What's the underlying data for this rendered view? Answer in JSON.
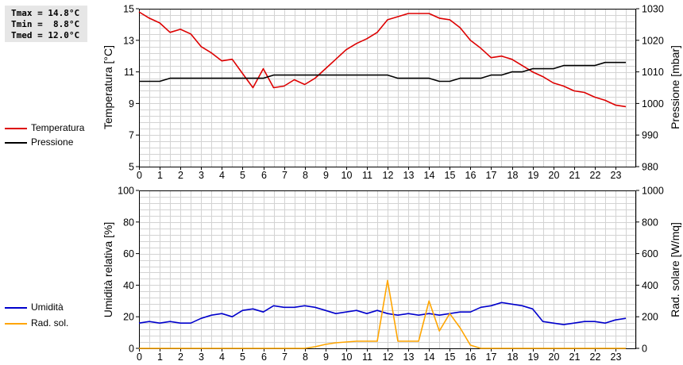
{
  "stats": {
    "tmax": "Tmax = 14.8°C",
    "tmin": "Tmin =  8.8°C",
    "tmed": "Tmed = 12.0°C"
  },
  "chart_data": [
    {
      "type": "line",
      "ylabel": "Temperatura [°C]",
      "y2label": "Pressione [mbar]",
      "ylim": [
        5,
        15
      ],
      "y2lim": [
        980,
        1030
      ],
      "y_ticks": [
        "5",
        "7",
        "9",
        "11",
        "13",
        "15"
      ],
      "y2_ticks": [
        "980",
        "990",
        "1000",
        "1010",
        "1020",
        "1030"
      ],
      "xlim": [
        0,
        24
      ],
      "x_ticks": [
        "0",
        "1",
        "2",
        "3",
        "4",
        "5",
        "6",
        "7",
        "8",
        "9",
        "10",
        "11",
        "12",
        "13",
        "14",
        "15",
        "16",
        "17",
        "18",
        "19",
        "20",
        "21",
        "22",
        "23"
      ],
      "grid": true,
      "legend": "left",
      "series": [
        {
          "name": "Temperatura",
          "axis": "left",
          "color": "#dd0000",
          "x": [
            0,
            0.5,
            1,
            1.5,
            2,
            2.5,
            3,
            3.5,
            4,
            4.5,
            5,
            5.5,
            6,
            6.5,
            7,
            7.5,
            8,
            8.5,
            9,
            9.5,
            10,
            10.5,
            11,
            11.5,
            12,
            12.5,
            13,
            13.5,
            14,
            14.5,
            15,
            15.5,
            16,
            16.5,
            17,
            17.5,
            18,
            18.5,
            19,
            19.5,
            20,
            20.5,
            21,
            21.5,
            22,
            22.5,
            23,
            23.5
          ],
          "y": [
            14.8,
            14.4,
            14.1,
            13.5,
            13.7,
            13.4,
            12.6,
            12.2,
            11.7,
            11.8,
            10.9,
            10.0,
            11.2,
            10.0,
            10.1,
            10.5,
            10.2,
            10.6,
            11.2,
            11.8,
            12.4,
            12.8,
            13.1,
            13.5,
            14.3,
            14.5,
            14.7,
            14.7,
            14.7,
            14.4,
            14.3,
            13.8,
            13.0,
            12.5,
            11.9,
            12.0,
            11.8,
            11.4,
            11.0,
            10.7,
            10.3,
            10.1,
            9.8,
            9.7,
            9.4,
            9.2,
            8.9,
            8.8
          ]
        },
        {
          "name": "Pressione",
          "axis": "right",
          "color": "#000000",
          "x": [
            0,
            0.5,
            1,
            1.5,
            2,
            2.5,
            3,
            3.5,
            4,
            4.5,
            5,
            5.5,
            6,
            6.5,
            7,
            7.5,
            8,
            8.5,
            9,
            9.5,
            10,
            10.5,
            11,
            11.5,
            12,
            12.5,
            13,
            13.5,
            14,
            14.5,
            15,
            15.5,
            16,
            16.5,
            17,
            17.5,
            18,
            18.5,
            19,
            19.5,
            20,
            20.5,
            21,
            21.5,
            22,
            22.5,
            23,
            23.5
          ],
          "y": [
            1007,
            1007,
            1007,
            1008,
            1008,
            1008,
            1008,
            1008,
            1008,
            1008,
            1008,
            1008,
            1008,
            1009,
            1009,
            1009,
            1009,
            1009,
            1009,
            1009,
            1009,
            1009,
            1009,
            1009,
            1009,
            1008,
            1008,
            1008,
            1008,
            1007,
            1007,
            1008,
            1008,
            1008,
            1009,
            1009,
            1010,
            1010,
            1011,
            1011,
            1011,
            1012,
            1012,
            1012,
            1012,
            1013,
            1013,
            1013
          ]
        }
      ]
    },
    {
      "type": "line",
      "ylabel": "Umidità relativa [%]",
      "y2label": "Rad. solare [W/mq]",
      "ylim": [
        0,
        100
      ],
      "y2lim": [
        0,
        1000
      ],
      "y_ticks": [
        "0",
        "20",
        "40",
        "60",
        "80",
        "100"
      ],
      "y2_ticks": [
        "0",
        "200",
        "400",
        "600",
        "800",
        "1000"
      ],
      "xlim": [
        0,
        24
      ],
      "x_ticks": [
        "0",
        "1",
        "2",
        "3",
        "4",
        "5",
        "6",
        "7",
        "8",
        "9",
        "10",
        "11",
        "12",
        "13",
        "14",
        "15",
        "16",
        "17",
        "18",
        "19",
        "20",
        "21",
        "22",
        "23"
      ],
      "grid": true,
      "legend": "left",
      "series": [
        {
          "name": "Umidità",
          "axis": "left",
          "color": "#0000cc",
          "x": [
            0,
            0.5,
            1,
            1.5,
            2,
            2.5,
            3,
            3.5,
            4,
            4.5,
            5,
            5.5,
            6,
            6.5,
            7,
            7.5,
            8,
            8.5,
            9,
            9.5,
            10,
            10.5,
            11,
            11.5,
            12,
            12.5,
            13,
            13.5,
            14,
            14.5,
            15,
            15.5,
            16,
            16.5,
            17,
            17.5,
            18,
            18.5,
            19,
            19.5,
            20,
            20.5,
            21,
            21.5,
            22,
            22.5,
            23,
            23.5
          ],
          "y": [
            16,
            17,
            16,
            17,
            16,
            16,
            19,
            21,
            22,
            20,
            24,
            25,
            23,
            27,
            26,
            26,
            27,
            26,
            24,
            22,
            23,
            24,
            22,
            24,
            22,
            21,
            22,
            21,
            22,
            21,
            22,
            23,
            23,
            26,
            27,
            29,
            28,
            27,
            25,
            17,
            16,
            15,
            16,
            17,
            17,
            16,
            18,
            19
          ]
        },
        {
          "name": "Rad. sol.",
          "axis": "right",
          "color": "#ffa500",
          "x": [
            0,
            0.5,
            1,
            1.5,
            2,
            2.5,
            3,
            3.5,
            4,
            4.5,
            5,
            5.5,
            6,
            6.5,
            7,
            7.5,
            8,
            8.5,
            9,
            9.5,
            10,
            10.5,
            11,
            11.5,
            12,
            12.5,
            13,
            13.5,
            14,
            14.5,
            15,
            15.5,
            16,
            16.5,
            17,
            17.5,
            18,
            18.5,
            19,
            19.5,
            20,
            20.5,
            21,
            21.5,
            22,
            22.5,
            23,
            23.5
          ],
          "y": [
            0,
            0,
            0,
            0,
            0,
            0,
            0,
            0,
            0,
            0,
            0,
            0,
            0,
            0,
            0,
            0,
            0,
            10,
            25,
            35,
            40,
            45,
            45,
            45,
            430,
            45,
            45,
            45,
            300,
            110,
            220,
            130,
            20,
            0,
            0,
            0,
            0,
            0,
            0,
            0,
            0,
            0,
            0,
            0,
            0,
            0,
            0,
            0
          ]
        }
      ]
    }
  ]
}
